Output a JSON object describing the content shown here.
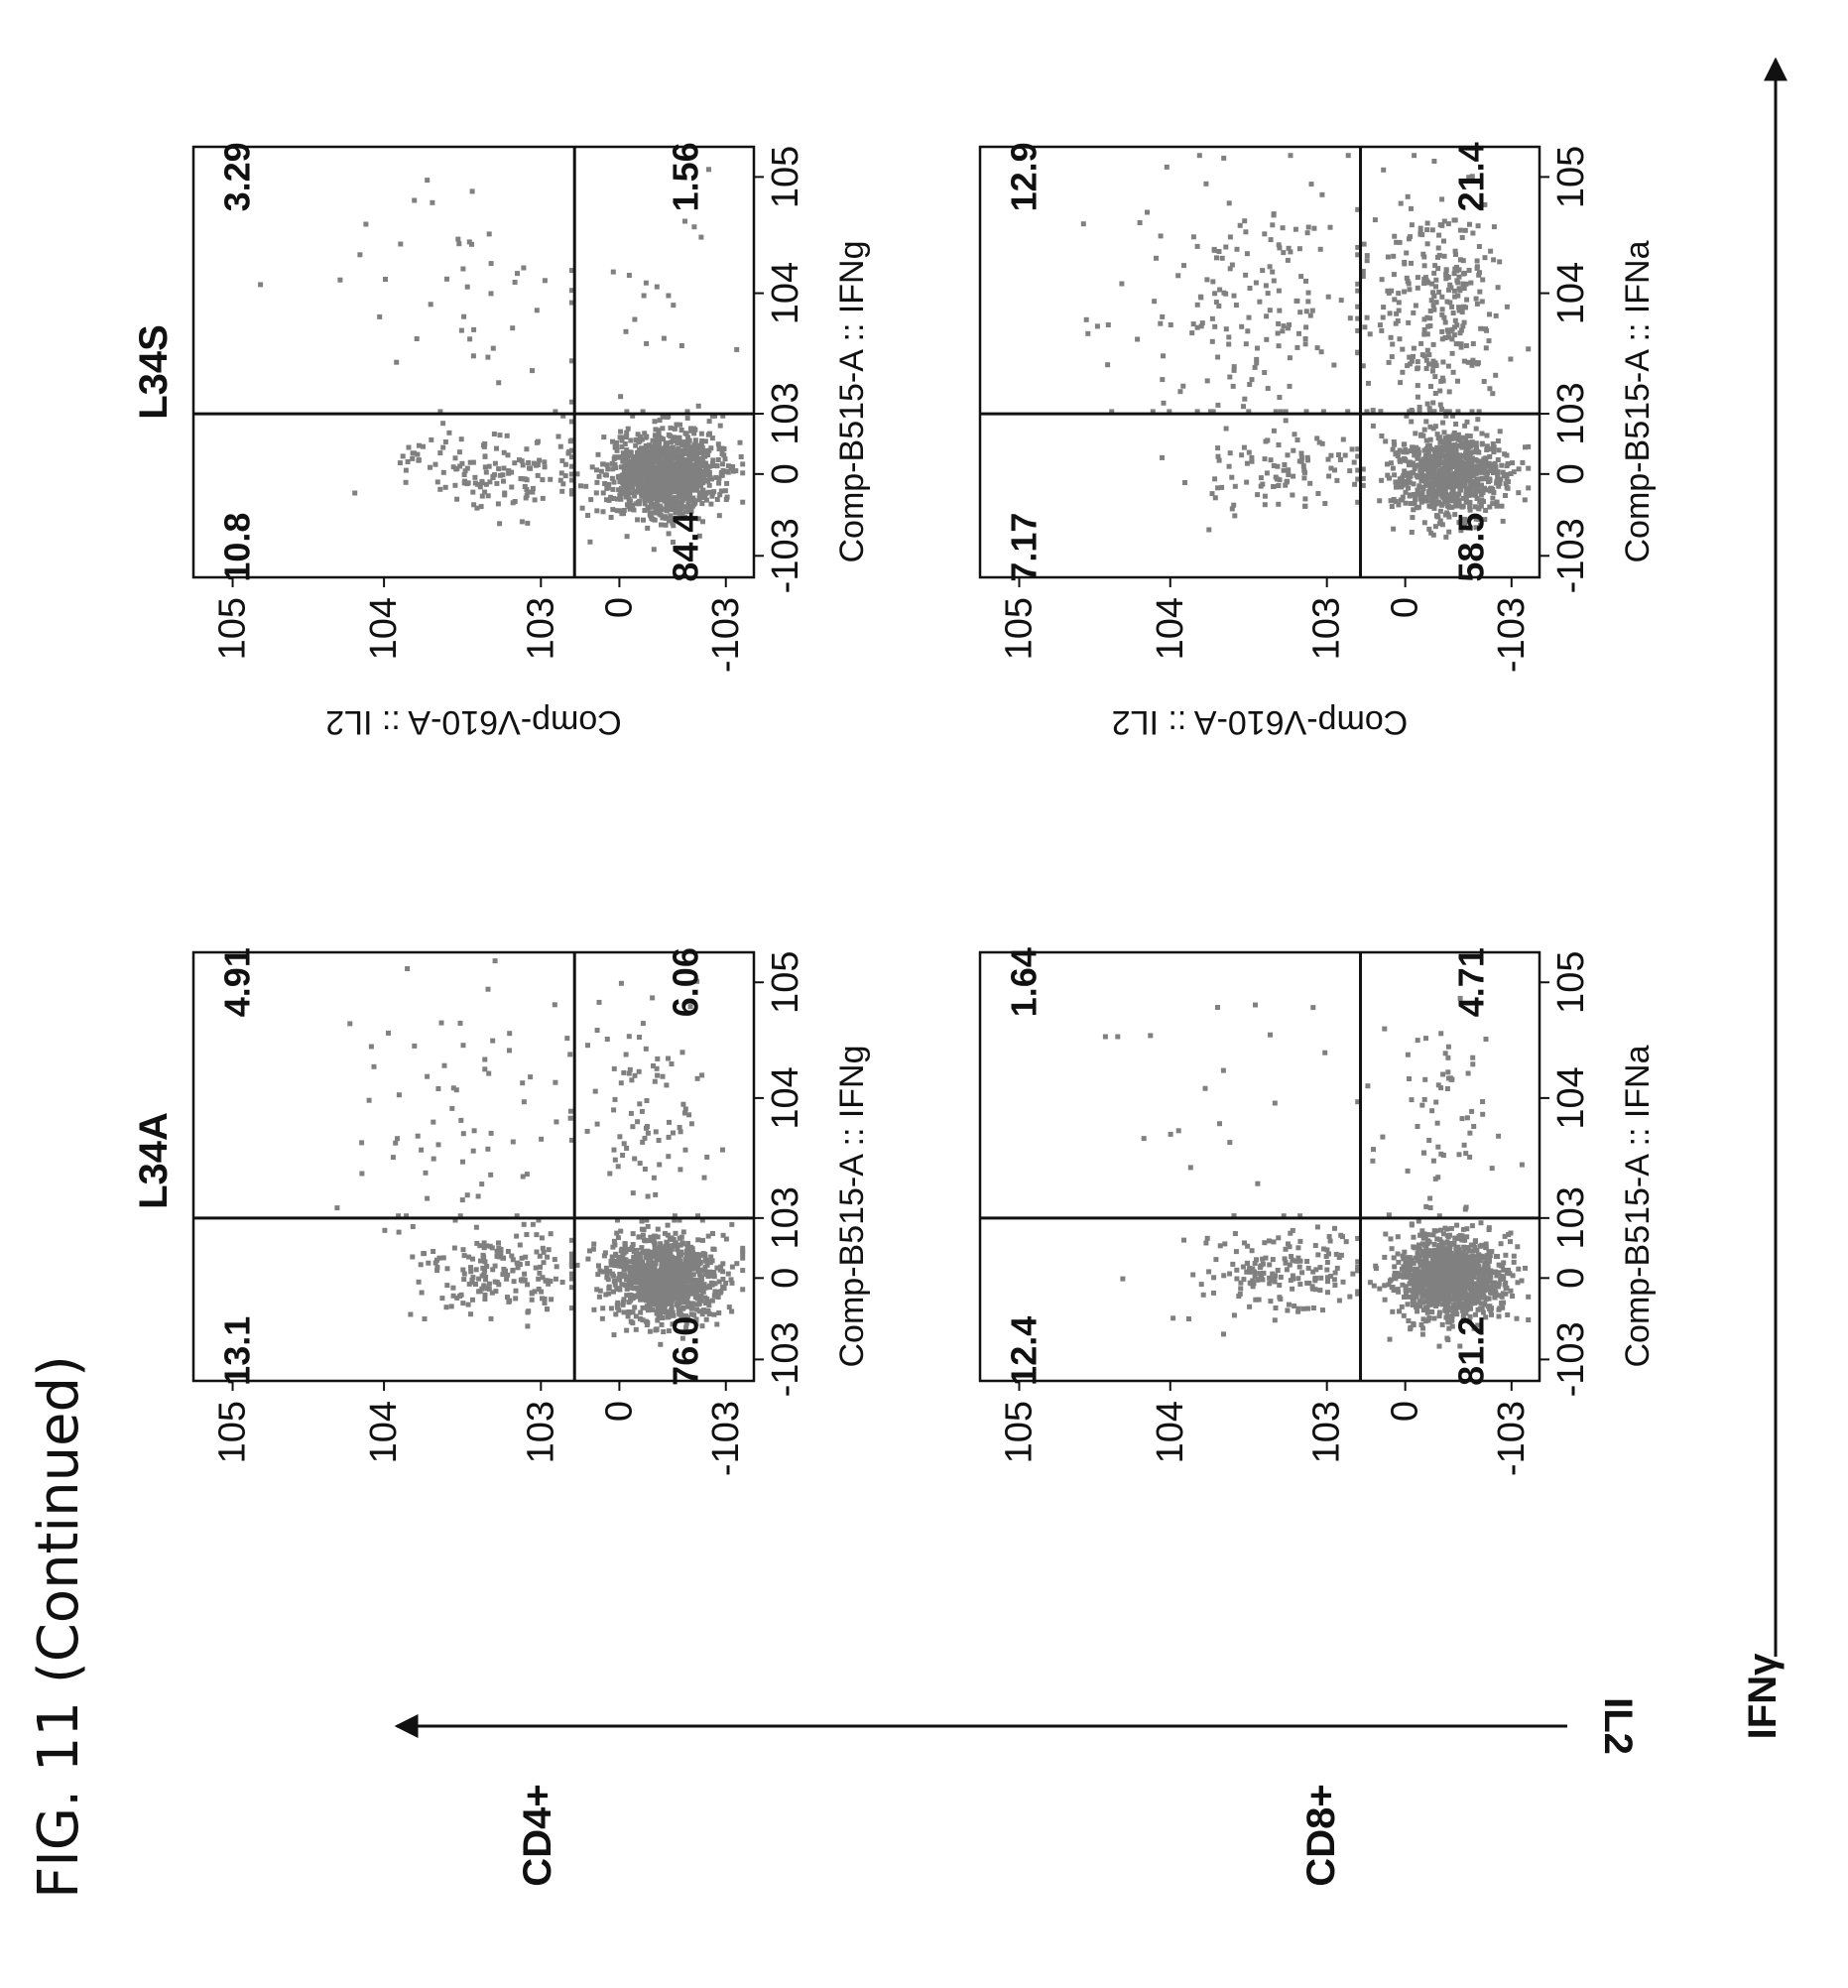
{
  "figure": {
    "title": "FIG. 11 (Continued)",
    "row_labels": [
      "CD4+",
      "CD8+"
    ],
    "column_labels": [
      "L34A",
      "L34S"
    ],
    "arrow_labels": {
      "horizontal": "IL2",
      "vertical": "IFNγ"
    }
  },
  "colors": {
    "dots": "#808080",
    "ink": "#111111",
    "background": "#ffffff"
  },
  "chart_data": [
    {
      "type": "scatter",
      "id": "cd4-l34a",
      "row": "CD4+",
      "title": "L34A",
      "xlabel": "Comp-B515-A :: IFNg",
      "ylabel": "Comp-V610-A :: IL2",
      "x_ticks": [
        "-10^3",
        "0",
        "10^3",
        "10^4",
        "10^5"
      ],
      "y_ticks": [
        "-10^3",
        "0",
        "10^3",
        "10^4",
        "10^5"
      ],
      "quadrants": {
        "upper_left": "10.8",
        "upper_right": "3.29",
        "lower_left": "84.4",
        "lower_right": "1.56"
      },
      "scale": "biexponential"
    },
    {
      "type": "scatter",
      "id": "cd4-l34s",
      "row": "CD4+",
      "title": "L34S",
      "xlabel": "Comp-B515-A :: IFNg",
      "ylabel": "",
      "x_ticks": [
        "-10^3",
        "0",
        "10^3",
        "10^4",
        "10^5"
      ],
      "y_ticks": [
        "-10^3",
        "0",
        "10^3",
        "10^4",
        "10^5"
      ],
      "quadrants": {
        "upper_left": "13.1",
        "upper_right": "4.91",
        "lower_left": "76.0",
        "lower_right": "6.06"
      },
      "scale": "biexponential"
    },
    {
      "type": "scatter",
      "id": "cd8-l34a",
      "row": "CD8+",
      "title": "",
      "xlabel": "Comp-B515-A :: IFNa",
      "ylabel": "Comp-V610-A :: IL2",
      "x_ticks": [
        "-10^3",
        "0",
        "10^3",
        "10^4",
        "10^5"
      ],
      "y_ticks": [
        "-10^3",
        "0",
        "10^3",
        "10^4",
        "10^5"
      ],
      "quadrants": {
        "upper_left": "7.17",
        "upper_right": "12.9",
        "lower_left": "58.5",
        "lower_right": "21.4"
      },
      "scale": "biexponential"
    },
    {
      "type": "scatter",
      "id": "cd8-l34s",
      "row": "CD8+",
      "title": "",
      "xlabel": "Comp-B515-A :: IFNa",
      "ylabel": "",
      "x_ticks": [
        "-10^3",
        "0",
        "10^3",
        "10^4",
        "10^5"
      ],
      "y_ticks": [
        "-10^3",
        "0",
        "10^3",
        "10^4",
        "10^5"
      ],
      "quadrants": {
        "upper_left": "12.4",
        "upper_right": "1.64",
        "lower_left": "81.2",
        "lower_right": "4.71"
      },
      "scale": "biexponential"
    }
  ]
}
